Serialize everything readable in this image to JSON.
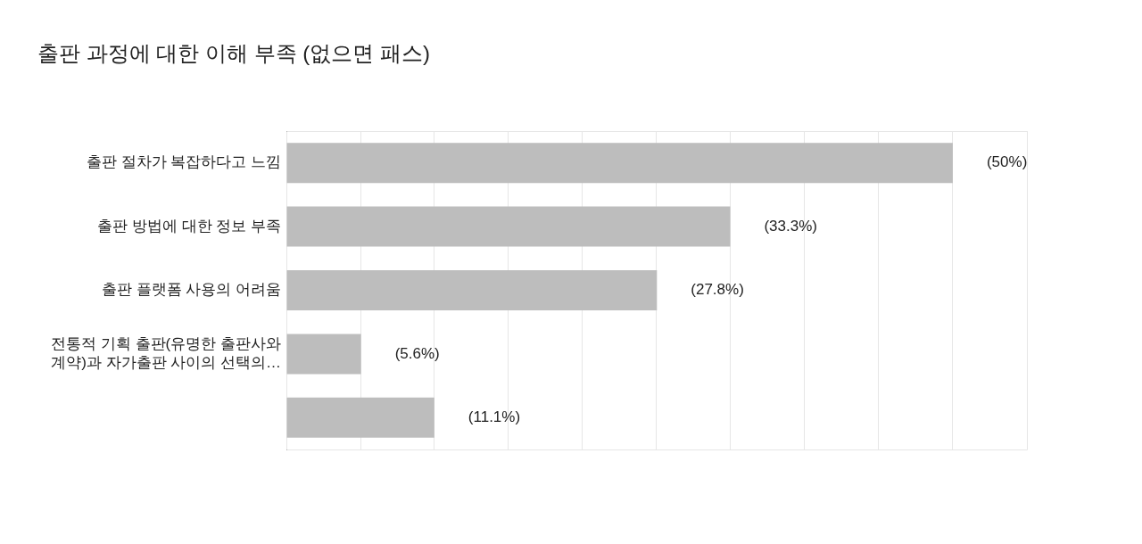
{
  "chart_data": {
    "type": "bar",
    "orientation": "horizontal",
    "title": "출판 과정에 대한 이해 부족 (없으면 패스)",
    "categories": [
      "출판 절차가 복잡하다고 느낌",
      "출판 방법에 대한 정보 부족",
      "출판 플랫폼 사용의 어려움",
      "전통적 기획 출판(유명한 출판사와 계약)과 자가출판 사이의 선택의…",
      null
    ],
    "values": [
      50,
      33.3,
      27.8,
      5.6,
      11.1
    ],
    "value_labels": [
      "(50%)",
      "(33.3%)",
      "(27.8%)",
      "(5.6%)",
      "(11.1%)"
    ],
    "color": "#bdbdbd",
    "xlim": [
      0,
      55.56
    ],
    "xticks": [
      {
        "value": 0,
        "label": null
      },
      {
        "value": 5.556,
        "label": null
      },
      {
        "value": 11.111,
        "label": null
      },
      {
        "value": 16.667,
        "label": null
      },
      {
        "value": 22.222,
        "label": null
      },
      {
        "value": 27.778,
        "label": null
      },
      {
        "value": 33.333,
        "label": null
      },
      {
        "value": 38.889,
        "label": null
      },
      {
        "value": 44.444,
        "label": null
      },
      {
        "value": 50,
        "label": null
      },
      {
        "value": 55.56,
        "label": null
      }
    ],
    "grid": "x",
    "legend": false,
    "tick_labels": "y"
  }
}
